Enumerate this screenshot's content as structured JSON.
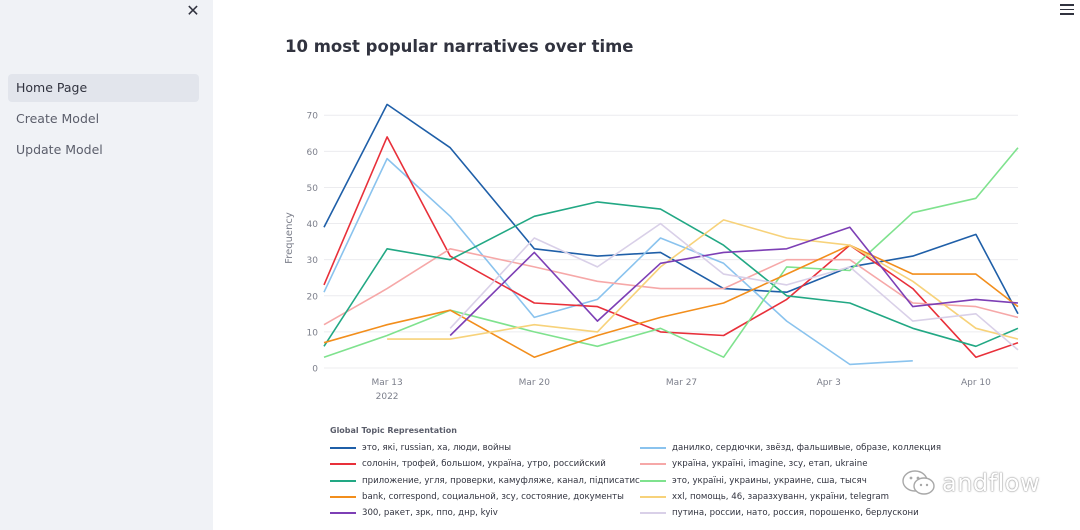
{
  "sidebar": {
    "items": [
      {
        "label": "Home Page",
        "active": true
      },
      {
        "label": "Create Model",
        "active": false
      },
      {
        "label": "Update Model",
        "active": false
      }
    ]
  },
  "icons": {
    "close": "close-icon",
    "menu": "hamburger-menu-icon",
    "watermark": "wechat-logo-icon"
  },
  "page": {
    "title": "10 most popular narratives over time"
  },
  "watermark": {
    "text": "andflow"
  },
  "chart_data": {
    "type": "line",
    "title": "10 most popular narratives over time",
    "xlabel": "",
    "ylabel": "Frequency",
    "ylim": [
      0,
      72
    ],
    "xlim": [
      "2022-03-10",
      "2022-04-12"
    ],
    "x_ticks": [
      {
        "date": "2022-03-13",
        "label": "Mar 13",
        "sublabel": "2022"
      },
      {
        "date": "2022-03-20",
        "label": "Mar 20",
        "sublabel": ""
      },
      {
        "date": "2022-03-27",
        "label": "Mar 27",
        "sublabel": ""
      },
      {
        "date": "2022-04-03",
        "label": "Apr 3",
        "sublabel": ""
      },
      {
        "date": "2022-04-10",
        "label": "Apr 10",
        "sublabel": ""
      }
    ],
    "y_ticks": [
      0,
      10,
      20,
      30,
      40,
      50,
      60,
      70
    ],
    "grid": true,
    "legend_title": "Global Topic Representation",
    "legend_placement": "bottom",
    "series": [
      {
        "name": "это, які, russian, ха, люди, войны",
        "color": "#1f5fa8",
        "x": [
          "2022-03-10",
          "2022-03-13",
          "2022-03-16",
          "2022-03-20",
          "2022-03-23",
          "2022-03-26",
          "2022-03-29",
          "2022-04-01",
          "2022-04-04",
          "2022-04-07",
          "2022-04-10",
          "2022-04-12"
        ],
        "y": [
          39,
          73,
          61,
          33,
          31,
          32,
          22,
          21,
          28,
          31,
          37,
          15
        ]
      },
      {
        "name": "данилко, сердючки, звёзд, фальшивые, образе, коллекция",
        "color": "#8ac3ee",
        "x": [
          "2022-03-10",
          "2022-03-13",
          "2022-03-16",
          "2022-03-20",
          "2022-03-23",
          "2022-03-26",
          "2022-03-29",
          "2022-04-01",
          "2022-04-04",
          "2022-04-07"
        ],
        "y": [
          21,
          58,
          42,
          14,
          19,
          36,
          29,
          13,
          1,
          2
        ]
      },
      {
        "name": "солонін, трофей, большом, україна, утро, российский",
        "color": "#e8303a",
        "x": [
          "2022-03-10",
          "2022-03-13",
          "2022-03-16",
          "2022-03-20",
          "2022-03-23",
          "2022-03-26",
          "2022-03-29",
          "2022-04-01",
          "2022-04-04",
          "2022-04-07",
          "2022-04-10",
          "2022-04-12"
        ],
        "y": [
          23,
          64,
          31,
          18,
          17,
          10,
          9,
          19,
          34,
          22,
          3,
          7
        ]
      },
      {
        "name": "україна, україні, imagine, зсу, етап, ukraine",
        "color": "#f6a8a8",
        "x": [
          "2022-03-10",
          "2022-03-13",
          "2022-03-16",
          "2022-03-20",
          "2022-03-23",
          "2022-03-26",
          "2022-03-29",
          "2022-04-01",
          "2022-04-04",
          "2022-04-07",
          "2022-04-10",
          "2022-04-12"
        ],
        "y": [
          12,
          22,
          33,
          28,
          24,
          22,
          22,
          30,
          30,
          18,
          17,
          14
        ]
      },
      {
        "name": "приложение, угля, проверки, камуфляже, канал, підписатис",
        "color": "#22a884",
        "x": [
          "2022-03-10",
          "2022-03-13",
          "2022-03-16",
          "2022-03-20",
          "2022-03-23",
          "2022-03-26",
          "2022-03-29",
          "2022-04-01",
          "2022-04-04",
          "2022-04-07",
          "2022-04-10",
          "2022-04-12"
        ],
        "y": [
          6,
          33,
          30,
          42,
          46,
          44,
          34,
          20,
          18,
          11,
          6,
          11
        ]
      },
      {
        "name": "это, україні, украины, украине, сша, тысяч",
        "color": "#7fe28e",
        "x": [
          "2022-03-10",
          "2022-03-13",
          "2022-03-16",
          "2022-03-20",
          "2022-03-23",
          "2022-03-26",
          "2022-03-29",
          "2022-04-01",
          "2022-04-04",
          "2022-04-07",
          "2022-04-10",
          "2022-04-12"
        ],
        "y": [
          3,
          9,
          16,
          10,
          6,
          11,
          3,
          28,
          27,
          43,
          47,
          61
        ]
      },
      {
        "name": "bank, correspond, социальной, зсу, состояние, документы",
        "color": "#f28e1c",
        "x": [
          "2022-03-10",
          "2022-03-13",
          "2022-03-16",
          "2022-03-20",
          "2022-03-23",
          "2022-03-26",
          "2022-03-29",
          "2022-04-01",
          "2022-04-04",
          "2022-04-07",
          "2022-04-10",
          "2022-04-12"
        ],
        "y": [
          7,
          12,
          16,
          3,
          9,
          14,
          18,
          26,
          34,
          26,
          26,
          17
        ]
      },
      {
        "name": "xxl, помощь, 46, заразхуванн, україни, telegram",
        "color": "#f7d27a",
        "x": [
          "2022-03-13",
          "2022-03-16",
          "2022-03-20",
          "2022-03-23",
          "2022-03-26",
          "2022-03-29",
          "2022-04-01",
          "2022-04-04",
          "2022-04-07",
          "2022-04-10",
          "2022-04-12"
        ],
        "y": [
          8,
          8,
          12,
          10,
          28,
          41,
          36,
          34,
          24,
          11,
          8
        ]
      },
      {
        "name": "300, ракет, зрк, ппо, днр, kyiv",
        "color": "#7d3fb5",
        "x": [
          "2022-03-16",
          "2022-03-20",
          "2022-03-23",
          "2022-03-26",
          "2022-03-29",
          "2022-04-01",
          "2022-04-04",
          "2022-04-07",
          "2022-04-10",
          "2022-04-12"
        ],
        "y": [
          9,
          32,
          13,
          29,
          32,
          33,
          39,
          17,
          19,
          18
        ]
      },
      {
        "name": "путина, россии, нато, россия, порошенко, берлускони",
        "color": "#d9d0e8",
        "x": [
          "2022-03-16",
          "2022-03-20",
          "2022-03-23",
          "2022-03-26",
          "2022-03-29",
          "2022-04-01",
          "2022-04-04",
          "2022-04-07",
          "2022-04-10",
          "2022-04-12"
        ],
        "y": [
          11,
          36,
          28,
          40,
          26,
          23,
          28,
          13,
          15,
          5
        ]
      }
    ]
  }
}
